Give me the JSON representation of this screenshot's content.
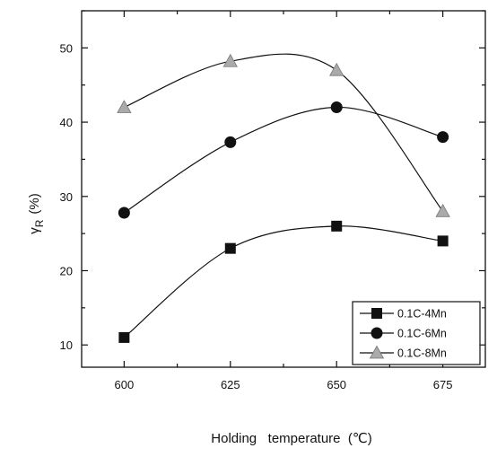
{
  "chart_data": {
    "type": "line",
    "xlabel": "Holding   temperature  (℃)",
    "ylabel_main": "γ",
    "ylabel_sub": "R",
    "ylabel_unit": "(%)",
    "xlim": [
      590,
      685
    ],
    "ylim": [
      7,
      55
    ],
    "x_ticks": [
      600,
      625,
      650,
      675
    ],
    "y_ticks": [
      10,
      20,
      30,
      40,
      50
    ],
    "grid": false,
    "legend_position": "bottom-right",
    "series": [
      {
        "name": "0.1C-4Mn",
        "marker": "square",
        "color": "#111111",
        "x": [
          600,
          625,
          650,
          675
        ],
        "y": [
          11,
          23,
          26,
          24
        ]
      },
      {
        "name": "0.1C-6Mn",
        "marker": "circle",
        "color": "#111111",
        "x": [
          600,
          625,
          650,
          675
        ],
        "y": [
          27.8,
          37.3,
          42,
          38
        ]
      },
      {
        "name": "0.1C-8Mn",
        "marker": "triangle",
        "color": "#aaaaaa",
        "x": [
          600,
          625,
          650,
          675
        ],
        "y": [
          42,
          48.2,
          47,
          28
        ]
      }
    ]
  }
}
